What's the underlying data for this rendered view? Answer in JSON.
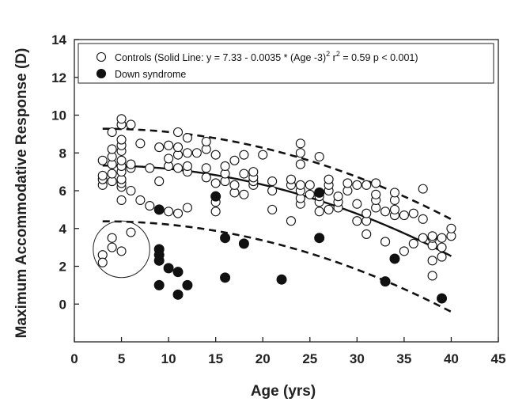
{
  "chart_data": {
    "type": "scatter",
    "xlabel": "Age (yrs)",
    "ylabel": "Maximum Accommodative Response (D)",
    "xlim": [
      0,
      45
    ],
    "ylim": [
      -2,
      14
    ],
    "xticks": [
      0,
      5,
      10,
      15,
      20,
      25,
      30,
      35,
      40,
      45
    ],
    "yticks": [
      0,
      2,
      4,
      6,
      8,
      10,
      12,
      14
    ],
    "grid": false,
    "legend_position": "top-right",
    "legend": [
      {
        "label": "Controls (Solid Line:  y = 7.33 - 0.0035 * (Age -3)",
        "sup": "2",
        "label_tail": " r",
        "sup2": "2",
        "label_end": " = 0.59  p < 0.001)",
        "marker": "open-circle"
      },
      {
        "label": "Down syndrome",
        "marker": "filled-circle"
      }
    ],
    "series": [
      {
        "name": "Controls",
        "marker": "open-circle",
        "points": [
          [
            3,
            6.3
          ],
          [
            3,
            6.6
          ],
          [
            3,
            6.8
          ],
          [
            3,
            7.6
          ],
          [
            3,
            2.6
          ],
          [
            3,
            2.2
          ],
          [
            4,
            6.5
          ],
          [
            4,
            6.9
          ],
          [
            4,
            7.4
          ],
          [
            4,
            7.8
          ],
          [
            4,
            8.2
          ],
          [
            4,
            9.1
          ],
          [
            4,
            3.5
          ],
          [
            4,
            3.0
          ],
          [
            5,
            5.5
          ],
          [
            5,
            6.2
          ],
          [
            5,
            6.4
          ],
          [
            5,
            6.6
          ],
          [
            5,
            7.0
          ],
          [
            5,
            7.3
          ],
          [
            5,
            7.6
          ],
          [
            5,
            8.1
          ],
          [
            5,
            8.4
          ],
          [
            5,
            8.7
          ],
          [
            5,
            9.5
          ],
          [
            5,
            9.8
          ],
          [
            5,
            2.8
          ],
          [
            6,
            6.0
          ],
          [
            6,
            7.2
          ],
          [
            6,
            7.4
          ],
          [
            6,
            9.5
          ],
          [
            6,
            3.8
          ],
          [
            7,
            5.5
          ],
          [
            7,
            8.5
          ],
          [
            8,
            5.2
          ],
          [
            8,
            7.2
          ],
          [
            9,
            5.0
          ],
          [
            9,
            6.5
          ],
          [
            9,
            8.3
          ],
          [
            10,
            4.9
          ],
          [
            10,
            7.3
          ],
          [
            10,
            7.7
          ],
          [
            10,
            8.4
          ],
          [
            11,
            4.8
          ],
          [
            11,
            7.2
          ],
          [
            11,
            7.9
          ],
          [
            11,
            8.3
          ],
          [
            11,
            9.1
          ],
          [
            12,
            5.1
          ],
          [
            12,
            7.0
          ],
          [
            12,
            7.3
          ],
          [
            12,
            8.0
          ],
          [
            12,
            8.8
          ],
          [
            13,
            8.0
          ],
          [
            14,
            6.7
          ],
          [
            14,
            7.2
          ],
          [
            14,
            8.2
          ],
          [
            14,
            8.6
          ],
          [
            15,
            4.9
          ],
          [
            15,
            5.4
          ],
          [
            15,
            6.4
          ],
          [
            15,
            7.9
          ],
          [
            16,
            6.5
          ],
          [
            16,
            6.9
          ],
          [
            16,
            7.3
          ],
          [
            17,
            5.9
          ],
          [
            17,
            6.3
          ],
          [
            17,
            7.6
          ],
          [
            18,
            5.8
          ],
          [
            18,
            6.9
          ],
          [
            18,
            7.9
          ],
          [
            19,
            6.3
          ],
          [
            19,
            6.5
          ],
          [
            19,
            6.7
          ],
          [
            19,
            7.0
          ],
          [
            20,
            7.9
          ],
          [
            21,
            5.0
          ],
          [
            21,
            6.0
          ],
          [
            21,
            6.5
          ],
          [
            23,
            4.4
          ],
          [
            23,
            6.3
          ],
          [
            23,
            6.6
          ],
          [
            24,
            5.3
          ],
          [
            24,
            5.6
          ],
          [
            24,
            6.0
          ],
          [
            24,
            6.3
          ],
          [
            24,
            7.4
          ],
          [
            24,
            8.0
          ],
          [
            24,
            8.5
          ],
          [
            25,
            5.8
          ],
          [
            25,
            6.3
          ],
          [
            26,
            4.9
          ],
          [
            26,
            5.4
          ],
          [
            26,
            5.7
          ],
          [
            26,
            7.8
          ],
          [
            27,
            5.0
          ],
          [
            27,
            6.0
          ],
          [
            27,
            6.3
          ],
          [
            27,
            6.6
          ],
          [
            28,
            5.1
          ],
          [
            28,
            5.4
          ],
          [
            28,
            5.7
          ],
          [
            29,
            6.0
          ],
          [
            29,
            6.4
          ],
          [
            30,
            4.4
          ],
          [
            30,
            5.3
          ],
          [
            30,
            6.3
          ],
          [
            31,
            3.7
          ],
          [
            31,
            4.4
          ],
          [
            31,
            4.8
          ],
          [
            31,
            6.3
          ],
          [
            32,
            5.1
          ],
          [
            32,
            5.5
          ],
          [
            32,
            5.8
          ],
          [
            32,
            6.4
          ],
          [
            33,
            3.3
          ],
          [
            33,
            4.9
          ],
          [
            34,
            4.7
          ],
          [
            34,
            5.0
          ],
          [
            34,
            5.5
          ],
          [
            34,
            5.9
          ],
          [
            35,
            2.8
          ],
          [
            35,
            4.7
          ],
          [
            36,
            3.2
          ],
          [
            36,
            4.8
          ],
          [
            37,
            3.5
          ],
          [
            37,
            4.5
          ],
          [
            37,
            6.1
          ],
          [
            38,
            1.5
          ],
          [
            38,
            2.3
          ],
          [
            38,
            3.1
          ],
          [
            38,
            3.5
          ],
          [
            38,
            3.6
          ],
          [
            39,
            2.5
          ],
          [
            39,
            3.0
          ],
          [
            39,
            3.5
          ],
          [
            40,
            3.6
          ],
          [
            40,
            4.0
          ]
        ]
      },
      {
        "name": "Down syndrome",
        "marker": "filled-circle",
        "points": [
          [
            9,
            5.0
          ],
          [
            9,
            2.9
          ],
          [
            9,
            2.6
          ],
          [
            9,
            2.3
          ],
          [
            9,
            1.0
          ],
          [
            10,
            1.9
          ],
          [
            11,
            1.7
          ],
          [
            11,
            0.5
          ],
          [
            12,
            1.0
          ],
          [
            15,
            5.7
          ],
          [
            16,
            3.5
          ],
          [
            16,
            1.4
          ],
          [
            18,
            3.2
          ],
          [
            22,
            1.3
          ],
          [
            26,
            5.9
          ],
          [
            26,
            3.5
          ],
          [
            33,
            1.2
          ],
          [
            34,
            2.4
          ],
          [
            39,
            0.3
          ]
        ]
      }
    ],
    "fit_line": {
      "series": "Controls",
      "style": "solid",
      "a": 7.33,
      "b": 0.0035,
      "offset": 3,
      "x_range": [
        3,
        40
      ]
    },
    "confidence_bands": {
      "style": "dashed",
      "upper_offset": 1.95,
      "lower_offset": -2.95,
      "x_range": [
        3,
        40
      ]
    },
    "annotation_circle": {
      "center": [
        5,
        2.9
      ],
      "radius_x": 3
    }
  }
}
